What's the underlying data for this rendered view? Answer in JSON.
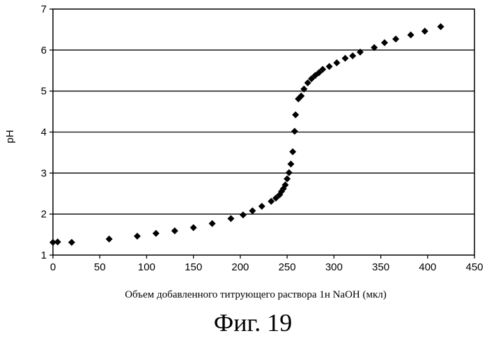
{
  "chart_data": {
    "type": "scatter",
    "title": "",
    "xlabel": "Объем добавленного титрующего раствора 1н NaOH (мкл)",
    "ylabel": "pH",
    "xlim": [
      0,
      450
    ],
    "ylim": [
      1,
      7
    ],
    "x_ticks": [
      "0",
      "50",
      "100",
      "150",
      "200",
      "250",
      "300",
      "350",
      "400",
      "450"
    ],
    "y_ticks": [
      "1",
      "2",
      "3",
      "4",
      "5",
      "6",
      "7"
    ],
    "grid": "horizontal",
    "legend": "none",
    "marker": "diamond",
    "marker_color": "#000000",
    "points": [
      [
        0,
        1.31
      ],
      [
        5,
        1.32
      ],
      [
        20,
        1.31
      ],
      [
        60,
        1.39
      ],
      [
        90,
        1.46
      ],
      [
        110,
        1.53
      ],
      [
        130,
        1.59
      ],
      [
        150,
        1.67
      ],
      [
        170,
        1.77
      ],
      [
        190,
        1.89
      ],
      [
        203,
        1.98
      ],
      [
        213,
        2.08
      ],
      [
        223,
        2.19
      ],
      [
        233,
        2.31
      ],
      [
        238,
        2.39
      ],
      [
        242,
        2.47
      ],
      [
        244,
        2.55
      ],
      [
        246,
        2.62
      ],
      [
        248,
        2.71
      ],
      [
        250,
        2.86
      ],
      [
        252,
        3.01
      ],
      [
        254,
        3.22
      ],
      [
        256,
        3.52
      ],
      [
        258,
        4.02
      ],
      [
        259,
        4.42
      ],
      [
        262,
        4.81
      ],
      [
        265,
        4.88
      ],
      [
        268,
        5.05
      ],
      [
        272,
        5.2
      ],
      [
        276,
        5.3
      ],
      [
        280,
        5.38
      ],
      [
        284,
        5.45
      ],
      [
        288,
        5.53
      ],
      [
        295,
        5.6
      ],
      [
        303,
        5.69
      ],
      [
        312,
        5.8
      ],
      [
        320,
        5.86
      ],
      [
        328,
        5.95
      ],
      [
        343,
        6.06
      ],
      [
        354,
        6.18
      ],
      [
        366,
        6.27
      ],
      [
        382,
        6.37
      ],
      [
        397,
        6.46
      ],
      [
        414,
        6.57
      ]
    ]
  },
  "caption": "Фиг. 19"
}
